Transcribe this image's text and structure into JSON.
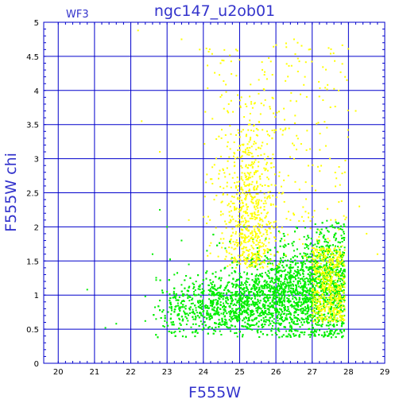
{
  "chart_data": {
    "type": "scatter",
    "title": "ngc147_u2ob01",
    "subtitle": "WF3",
    "xlabel": "F555W",
    "ylabel": "F555W chi",
    "xlim": [
      19.6,
      29
    ],
    "ylim": [
      0,
      5
    ],
    "x_ticks": [
      "20",
      "21",
      "22",
      "23",
      "24",
      "25",
      "26",
      "27",
      "28",
      "29"
    ],
    "y_ticks": [
      "0",
      "0.5",
      "1",
      "1.5",
      "2",
      "2.5",
      "3",
      "3.5",
      "4",
      "4.5",
      "5"
    ],
    "grid": true,
    "colors": {
      "axis": "#0000cc",
      "grid": "#0000cc",
      "text": "#3333cc",
      "green": "#00ee00",
      "yellow": "#ffff00"
    },
    "series": [
      {
        "color": "#00ee00",
        "description": "dense green point cloud (chi mostly 0.4-1.8) spanning F555W 22.5-27.9",
        "points": [
          [
            20.8,
            1.08
          ],
          [
            21.3,
            0.52
          ],
          [
            21.6,
            0.58
          ],
          [
            22.4,
            0.62
          ],
          [
            22.6,
            1.6
          ],
          [
            22.7,
            1.22
          ],
          [
            22.8,
            0.92
          ],
          [
            22.9,
            0.78
          ],
          [
            23.0,
            1.05
          ],
          [
            23.1,
            0.65
          ],
          [
            23.2,
            1.3
          ],
          [
            23.3,
            0.88
          ],
          [
            23.4,
            1.15
          ],
          [
            23.5,
            0.72
          ],
          [
            23.6,
            1.45
          ],
          [
            23.7,
            0.95
          ],
          [
            23.8,
            1.2
          ],
          [
            23.9,
            0.82
          ],
          [
            24.0,
            1.02
          ],
          [
            24.1,
            1.35
          ],
          [
            24.2,
            0.7
          ],
          [
            24.3,
            1.1
          ],
          [
            24.4,
            0.9
          ],
          [
            24.5,
            1.25
          ],
          [
            24.6,
            0.78
          ],
          [
            24.7,
            1.05
          ],
          [
            24.8,
            1.4
          ],
          [
            24.9,
            0.68
          ],
          [
            25.0,
            1.0
          ],
          [
            25.05,
            0.85
          ],
          [
            25.1,
            1.15
          ],
          [
            25.15,
            0.6
          ],
          [
            25.2,
            1.3
          ],
          [
            25.25,
            0.95
          ],
          [
            25.3,
            1.05
          ],
          [
            25.35,
            0.75
          ],
          [
            25.4,
            1.2
          ],
          [
            25.45,
            0.88
          ],
          [
            25.5,
            1.0
          ],
          [
            25.55,
            1.45
          ],
          [
            25.6,
            0.7
          ],
          [
            25.65,
            1.1
          ],
          [
            25.7,
            0.92
          ],
          [
            25.75,
            1.3
          ],
          [
            25.8,
            0.8
          ],
          [
            25.85,
            1.05
          ],
          [
            25.9,
            1.25
          ],
          [
            25.95,
            0.65
          ],
          [
            26.0,
            1.0
          ],
          [
            26.1,
            0.85
          ],
          [
            26.2,
            1.15
          ],
          [
            26.3,
            0.72
          ],
          [
            26.4,
            1.35
          ],
          [
            26.5,
            0.9
          ],
          [
            26.6,
            1.05
          ],
          [
            26.7,
            0.6
          ],
          [
            26.8,
            1.2
          ],
          [
            26.9,
            0.82
          ],
          [
            27.0,
            1.0
          ],
          [
            27.1,
            1.5
          ],
          [
            27.2,
            0.7
          ],
          [
            27.3,
            0.95
          ],
          [
            27.4,
            1.1
          ],
          [
            27.5,
            0.8
          ],
          [
            27.6,
            0.9
          ],
          [
            27.7,
            0.75
          ],
          [
            27.8,
            0.85
          ],
          [
            26.5,
            1.65
          ],
          [
            26.2,
            1.55
          ],
          [
            27.2,
            1.7
          ],
          [
            25.3,
            0.5
          ],
          [
            24.8,
            0.55
          ],
          [
            23.0,
            2.0
          ],
          [
            22.8,
            2.25
          ],
          [
            23.4,
            1.8
          ],
          [
            22.4,
            0.98
          ],
          [
            25.5,
            0.45
          ],
          [
            26.9,
            0.5
          ],
          [
            27.6,
            0.55
          ],
          [
            24.1,
            1.65
          ]
        ]
      },
      {
        "color": "#ffff00",
        "description": "sparser yellow point cloud (chi up to ~4.9) concentrated near F555W 24.7-26 and 27-28",
        "points": [
          [
            22.2,
            4.88
          ],
          [
            22.3,
            3.55
          ],
          [
            22.8,
            3.1
          ],
          [
            23.4,
            4.75
          ],
          [
            23.9,
            4.6
          ],
          [
            24.2,
            2.7
          ],
          [
            24.5,
            3.3
          ],
          [
            24.7,
            3.8
          ],
          [
            24.9,
            4.6
          ],
          [
            25.0,
            4.45
          ],
          [
            25.05,
            3.9
          ],
          [
            25.1,
            3.2
          ],
          [
            25.15,
            2.6
          ],
          [
            25.2,
            2.2
          ],
          [
            25.25,
            3.5
          ],
          [
            25.3,
            2.9
          ],
          [
            25.35,
            2.4
          ],
          [
            25.4,
            2.0
          ],
          [
            25.45,
            1.9
          ],
          [
            25.5,
            2.6
          ],
          [
            25.55,
            1.7
          ],
          [
            25.6,
            2.2
          ],
          [
            25.7,
            1.8
          ],
          [
            25.8,
            2.7
          ],
          [
            26.0,
            2.3
          ],
          [
            26.1,
            2.8
          ],
          [
            26.2,
            2.5
          ],
          [
            26.4,
            2.1
          ],
          [
            26.5,
            4.75
          ],
          [
            26.6,
            4.7
          ],
          [
            26.8,
            4.2
          ],
          [
            27.0,
            2.6
          ],
          [
            27.2,
            1.95
          ],
          [
            27.3,
            1.4
          ],
          [
            27.4,
            1.2
          ],
          [
            27.5,
            1.05
          ],
          [
            27.6,
            1.3
          ],
          [
            27.7,
            0.95
          ],
          [
            27.8,
            1.1
          ],
          [
            27.9,
            2.8
          ],
          [
            28.2,
            3.7
          ],
          [
            28.5,
            1.9
          ],
          [
            28.8,
            1.6
          ],
          [
            28.3,
            2.3
          ],
          [
            24.3,
            2.4
          ],
          [
            23.6,
            2.1
          ],
          [
            25.9,
            3.3
          ],
          [
            26.9,
            2.2
          ]
        ]
      }
    ]
  }
}
